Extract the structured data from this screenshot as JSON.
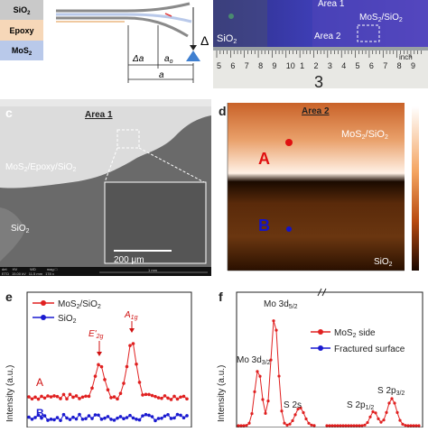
{
  "panel_a": {
    "legend": [
      {
        "label": "SiO",
        "sub": "2",
        "color": "#c9c9c9"
      },
      {
        "label": "Epoxy",
        "sub": "",
        "color": "#f6d7b8"
      },
      {
        "label": "MoS",
        "sub": "2",
        "color": "#b9c9ea"
      }
    ],
    "delta_symbol": "Δ",
    "delta_a_label": "Δa",
    "a0_label": "a",
    "a0_sub": "o",
    "a_label": "a"
  },
  "panel_b": {
    "area1": "Area 1",
    "area2": "Area 2",
    "mos2_label": "MoS",
    "mos2_sub": "2",
    "mos2_suffix": "/SiO",
    "mos2_suffix_sub": "2",
    "sio2_label": "SiO",
    "sio2_sub": "2",
    "ruler_numbers": [
      "5",
      "6",
      "7",
      "8",
      "9",
      "10",
      "1",
      "2",
      "3",
      "4",
      "5",
      "6",
      "7",
      "8",
      "9"
    ],
    "ruler_unit": "inch",
    "ruler_big_digit": "3"
  },
  "panel_c": {
    "letter": "c",
    "title": "Area 1",
    "label_top": "MoS",
    "label_top_sub": "2",
    "label_top_rest": "/Epoxy/SiO",
    "label_top_sub2": "2",
    "label_bottom": "SiO",
    "label_bottom_sub": "2",
    "scale_bar": "200 μm",
    "footer_headers": [
      "det",
      "HV",
      "WD",
      "mag □"
    ],
    "footer_values": [
      "ETD",
      "15.00 kV",
      "11.5 mm",
      "178 x"
    ],
    "footer_scale": "1 mm"
  },
  "panel_d": {
    "letter": "d",
    "title": "Area 2",
    "label_top": "MoS",
    "label_top_sub": "2",
    "label_top_rest": "/SiO",
    "label_top_sub2": "2",
    "label_bottom": "SiO",
    "label_bottom_sub": "2",
    "point_a": "A",
    "point_b": "B",
    "colors": {
      "point_a": "#e01010",
      "point_b": "#1414c8"
    }
  },
  "panel_e": {
    "letter": "e",
    "legend": [
      {
        "label": "MoS",
        "sub": "2",
        "rest": "/SiO",
        "sub2": "2",
        "color": "#e02020"
      },
      {
        "label": "SiO",
        "sub": "2",
        "rest": "",
        "sub2": "",
        "color": "#1a1ad0"
      }
    ],
    "ylabel": "Intensity (a.u.)",
    "peak1": "E'",
    "peak1_sub": "2g",
    "peak2": "A",
    "peak2_sub": "1g",
    "trace_a": "A",
    "trace_b": "B"
  },
  "panel_f": {
    "letter": "f",
    "ylabel": "Intensity (a.u.)",
    "legend": [
      {
        "label": "MoS",
        "sub": "2",
        "rest": " side",
        "color": "#e02020"
      },
      {
        "label": "Fractured surface",
        "sub": "",
        "rest": "",
        "color": "#1a1ad0"
      }
    ],
    "peaks": [
      {
        "label": "Mo 3d",
        "sub": "5/2"
      },
      {
        "label": "Mo 3d",
        "sub": "3/2"
      },
      {
        "label": "S 2s",
        "sub": ""
      },
      {
        "label": "S 2p",
        "sub": "1/2"
      },
      {
        "label": "S 2p",
        "sub": "3/2"
      }
    ]
  }
}
